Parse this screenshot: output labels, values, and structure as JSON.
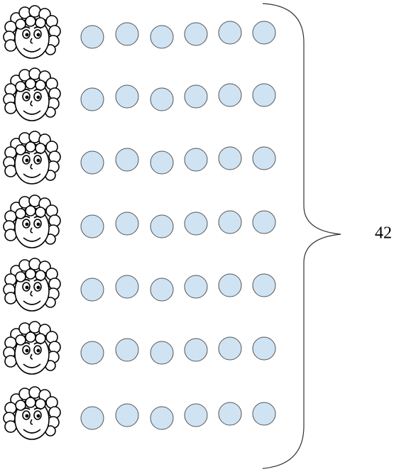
{
  "total": 42
}
